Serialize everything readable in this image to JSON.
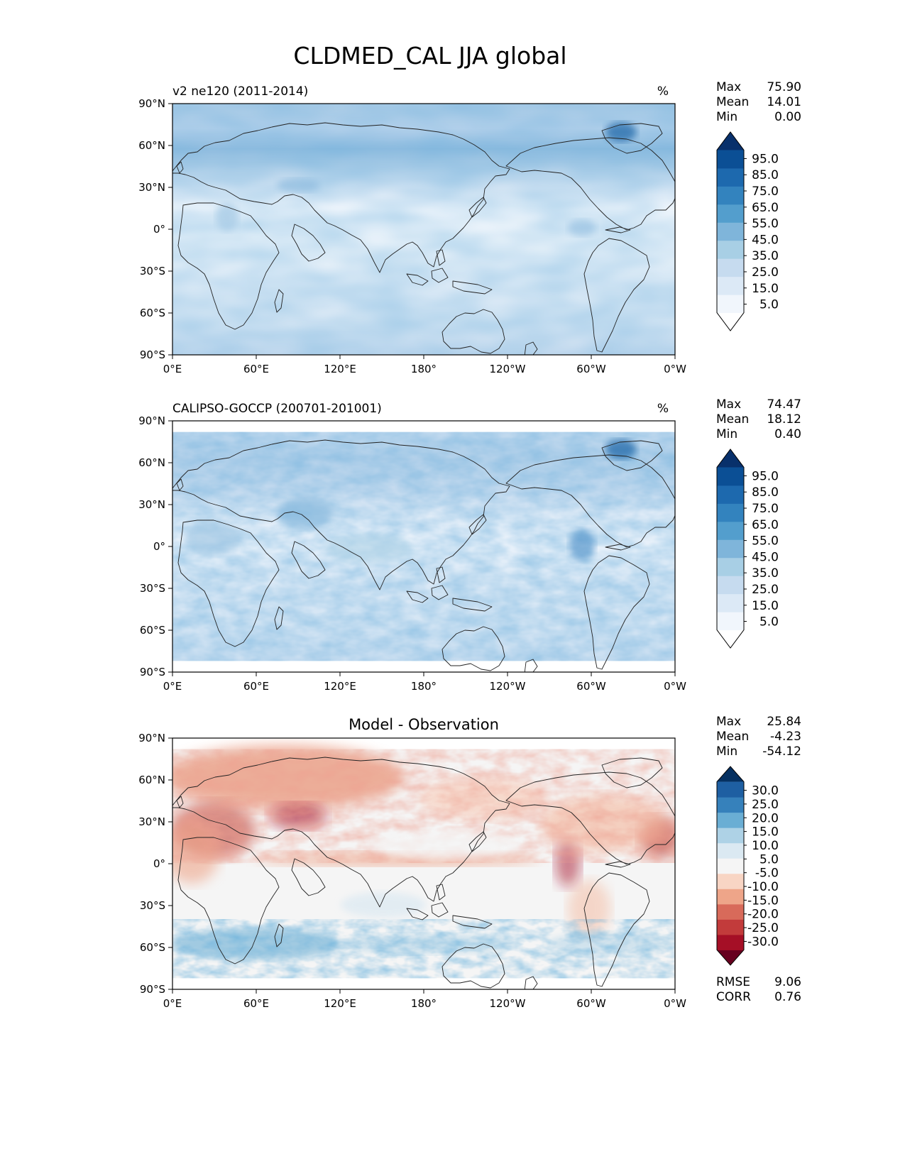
{
  "figure_title": "CLDMED_CAL JJA global",
  "axis": {
    "lat_labels": [
      "90°N",
      "60°N",
      "30°N",
      "0°",
      "30°S",
      "60°S",
      "90°S"
    ],
    "lon_labels": [
      "0°E",
      "60°E",
      "120°E",
      "180°",
      "120°W",
      "60°W",
      "0°W"
    ]
  },
  "colormaps": {
    "sequential_blues": [
      "#ffffff",
      "#f1f6fc",
      "#dce9f6",
      "#c6dbef",
      "#a8cfe5",
      "#7fb5da",
      "#539ecd",
      "#3383be",
      "#1d69ae",
      "#0b4f95",
      "#08306b"
    ],
    "diverging_rdbu": [
      "#67001f",
      "#a50f26",
      "#c23b3b",
      "#d86a5a",
      "#eea589",
      "#f8d5c4",
      "#f5f5f5",
      "#dbe9f2",
      "#aed2e6",
      "#6aaed4",
      "#3681bb",
      "#1e5fa2",
      "#053061"
    ],
    "coastline": "#222222"
  },
  "panels": [
    {
      "id": "model",
      "left_title": "v2 ne120 (2011-2014)",
      "center_title": "",
      "units": "%",
      "stats": [
        {
          "label": "Max",
          "value": "75.90"
        },
        {
          "label": "Mean",
          "value": "14.01"
        },
        {
          "label": "Min",
          "value": "0.00"
        }
      ],
      "colorbar_ticks": [
        "95.0",
        "85.0",
        "75.0",
        "65.0",
        "55.0",
        "45.0",
        "35.0",
        "25.0",
        "15.0",
        "5.0"
      ],
      "colormap": "sequential_blues",
      "latitude_coverage": [
        -90,
        90
      ]
    },
    {
      "id": "obs",
      "left_title": "CALIPSO-GOCCP (200701-201001)",
      "center_title": "",
      "units": "%",
      "stats": [
        {
          "label": "Max",
          "value": "74.47"
        },
        {
          "label": "Mean",
          "value": "18.12"
        },
        {
          "label": "Min",
          "value": "0.40"
        }
      ],
      "colorbar_ticks": [
        "95.0",
        "85.0",
        "75.0",
        "65.0",
        "55.0",
        "45.0",
        "35.0",
        "25.0",
        "15.0",
        "5.0"
      ],
      "colormap": "sequential_blues",
      "latitude_coverage": [
        -82,
        82
      ]
    },
    {
      "id": "diff",
      "left_title": "",
      "center_title": "Model - Observation",
      "units": "",
      "stats": [
        {
          "label": "Max",
          "value": "25.84"
        },
        {
          "label": "Mean",
          "value": "-4.23"
        },
        {
          "label": "Min",
          "value": "-54.12"
        }
      ],
      "colorbar_ticks": [
        "30.0",
        "25.0",
        "20.0",
        "15.0",
        "10.0",
        "5.0",
        "-5.0",
        "-10.0",
        "-15.0",
        "-20.0",
        "-25.0",
        "-30.0"
      ],
      "colormap": "diverging_rdbu",
      "latitude_coverage": [
        -82,
        82
      ],
      "metrics": [
        {
          "label": "RMSE",
          "value": "9.06"
        },
        {
          "label": "CORR",
          "value": "0.76"
        }
      ]
    }
  ]
}
